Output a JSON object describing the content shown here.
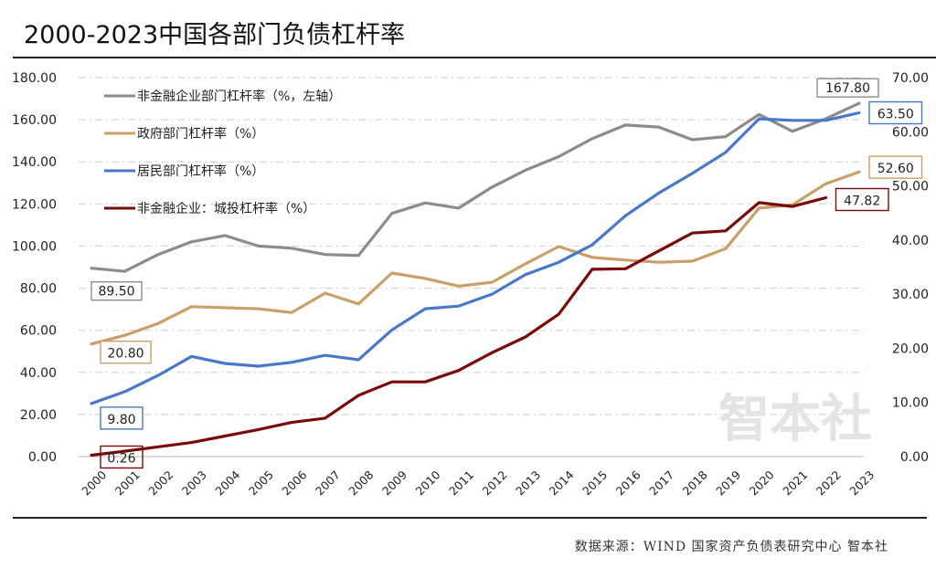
{
  "title": "2000-2023中国各部门负债杠杆率",
  "source": "数据来源：WIND 国家资产负债表研究中心 智本社",
  "watermark": "智本社",
  "chart_data": {
    "type": "line",
    "title": "2000-2023中国各部门负债杠杆率",
    "xlabel": "",
    "ylabel": "",
    "x": [
      "2000",
      "2001",
      "2002",
      "2003",
      "2004",
      "2005",
      "2006",
      "2007",
      "2008",
      "2009",
      "2010",
      "2011",
      "2012",
      "2013",
      "2014",
      "2015",
      "2016",
      "2017",
      "2018",
      "2019",
      "2020",
      "2021",
      "2022",
      "2023"
    ],
    "left_axis": {
      "ylim": [
        0,
        180
      ],
      "ticks": [
        "0.00",
        "20.00",
        "40.00",
        "60.00",
        "80.00",
        "100.00",
        "120.00",
        "140.00",
        "160.00",
        "180.00"
      ]
    },
    "right_axis": {
      "ylim": [
        0,
        70
      ],
      "ticks": [
        "0.00",
        "10.00",
        "20.00",
        "30.00",
        "40.00",
        "50.00",
        "60.00",
        "70.00"
      ]
    },
    "grid": true,
    "legend_position": "top-left",
    "series": [
      {
        "name": "非金融企业部门杠杆率（%，左轴）",
        "axis": "left",
        "color": "#8c8c8c",
        "values": [
          89.5,
          88.0,
          96.0,
          102.0,
          105.0,
          100.0,
          99.0,
          96.0,
          95.5,
          115.5,
          120.5,
          118.0,
          128.0,
          136.0,
          142.5,
          151.0,
          157.5,
          156.5,
          150.5,
          152.0,
          162.5,
          154.5,
          160.5,
          167.8
        ],
        "start_label": "89.50",
        "end_label": "167.80"
      },
      {
        "name": "政府部门杠杆率（%）",
        "axis": "right",
        "color": "#c8a068",
        "values": [
          20.8,
          22.4,
          24.6,
          27.7,
          27.5,
          27.3,
          26.6,
          30.2,
          28.2,
          33.9,
          32.9,
          31.5,
          32.2,
          35.6,
          38.8,
          36.8,
          36.3,
          35.9,
          36.1,
          38.4,
          45.9,
          46.5,
          50.4,
          52.6
        ],
        "start_label": "20.80",
        "end_label": "52.60"
      },
      {
        "name": "居民部门杠杆率（%）",
        "axis": "right",
        "color": "#4a78c8",
        "values": [
          9.8,
          12.0,
          15.0,
          18.5,
          17.2,
          16.7,
          17.4,
          18.7,
          17.9,
          23.4,
          27.3,
          27.8,
          30.0,
          33.6,
          35.9,
          39.1,
          44.5,
          48.7,
          52.3,
          56.2,
          62.4,
          62.1,
          62.1,
          63.5
        ],
        "start_label": "9.80",
        "end_label": "63.50"
      },
      {
        "name": "非金融企业：城投杠杆率（%）",
        "axis": "right",
        "color": "#7a0a0a",
        "values": [
          0.26,
          1.0,
          1.8,
          2.6,
          3.8,
          5.0,
          6.3,
          7.1,
          11.3,
          13.8,
          13.8,
          15.9,
          19.2,
          22.1,
          26.3,
          34.6,
          34.7,
          38.0,
          41.3,
          41.7,
          46.9,
          46.2,
          47.82,
          null
        ],
        "start_label": "0.26",
        "end_label": "47.82"
      }
    ]
  }
}
